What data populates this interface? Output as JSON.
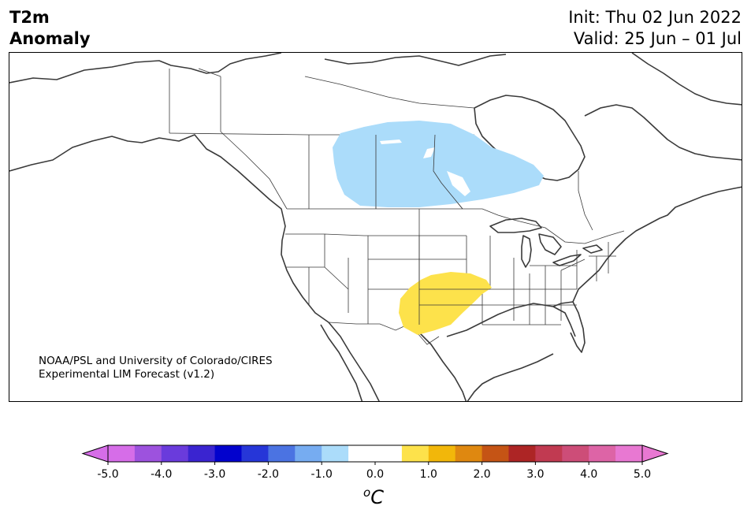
{
  "header": {
    "variable": "T2m",
    "variable_sub": "Anomaly",
    "init": "Init: Thu 02 Jun 2022",
    "valid": "Valid: 25 Jun – 01 Jul"
  },
  "credit": {
    "line1": "NOAA/PSL and University of Colorado/CIRES",
    "line2": "Experimental LIM Forecast (v1.2)"
  },
  "anomalies": [
    {
      "region": "central Canada (Saskatchewan, Manitoba, NW Ontario)",
      "sign": "negative",
      "range_c": "-1.0 to -0.5",
      "color": "#abdcfa"
    },
    {
      "region": "southern Plains (Oklahoma, N Texas)",
      "sign": "positive",
      "range_c": "0.5 to 1.0",
      "color": "#fde24b"
    }
  ],
  "colorbar": {
    "unit_base": "o",
    "unit_letter": "C",
    "ticks": [
      "-5.0",
      "-4.0",
      "-3.0",
      "-2.0",
      "-1.0",
      "0.0",
      "1.0",
      "2.0",
      "3.0",
      "4.0",
      "5.0"
    ],
    "colors": [
      "#d66de8",
      "#9d52de",
      "#6a3bdc",
      "#3a24d0",
      "#0202cd",
      "#2636d8",
      "#4b73e2",
      "#76acf1",
      "#abdcfa",
      "#ffffff",
      "#ffffff",
      "#fde24b",
      "#f2b70a",
      "#df8810",
      "#c55415",
      "#ad2525",
      "#c13a51",
      "#cd4d78",
      "#dd64a6",
      "#e878d2"
    ],
    "low_extend_color": "#d66de8",
    "high_extend_color": "#e878d2"
  }
}
